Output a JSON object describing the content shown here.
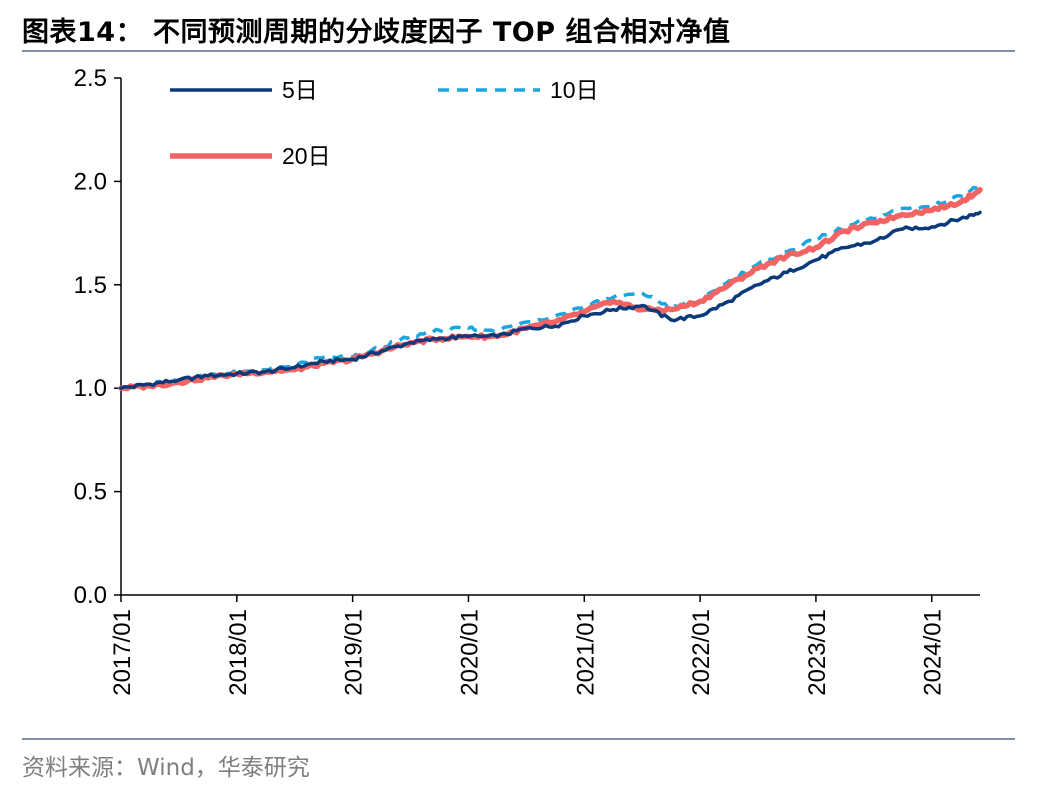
{
  "figure": {
    "title": "图表14：  不同预测周期的分歧度因子 TOP 组合相对净值",
    "source": "资料来源：Wind，华泰研究"
  },
  "colors": {
    "series_5d": "#0b3a7a",
    "series_10d": "#1aa7e0",
    "series_20d": "#f26463",
    "axis": "#000000",
    "rule": "#7f8fa9"
  },
  "chart_data": {
    "type": "line",
    "title": "不同预测周期的分歧度因子 TOP 组合相对净值",
    "xlabel": "",
    "ylabel": "",
    "ylim": [
      0.0,
      2.5
    ],
    "yticks": [
      "0.0",
      "0.5",
      "1.0",
      "1.5",
      "2.0",
      "2.5"
    ],
    "x_range": [
      "2017/01",
      "2024/06"
    ],
    "xticks": [
      "2017/01",
      "2018/01",
      "2019/01",
      "2020/01",
      "2021/01",
      "2022/01",
      "2023/01",
      "2024/01"
    ],
    "grid": false,
    "legend_position": "top-left",
    "x": [
      "2017/01",
      "2017/04",
      "2017/07",
      "2017/10",
      "2018/01",
      "2018/04",
      "2018/07",
      "2018/10",
      "2019/01",
      "2019/04",
      "2019/07",
      "2019/10",
      "2020/01",
      "2020/04",
      "2020/07",
      "2020/10",
      "2021/01",
      "2021/04",
      "2021/07",
      "2021/10",
      "2022/01",
      "2022/04",
      "2022/07",
      "2022/10",
      "2023/01",
      "2023/04",
      "2023/07",
      "2023/10",
      "2024/01",
      "2024/04",
      "2024/06"
    ],
    "series": [
      {
        "name": "5日",
        "style": "solid",
        "values": [
          1.0,
          1.02,
          1.04,
          1.06,
          1.07,
          1.08,
          1.1,
          1.13,
          1.14,
          1.18,
          1.22,
          1.24,
          1.25,
          1.25,
          1.29,
          1.3,
          1.35,
          1.38,
          1.4,
          1.33,
          1.35,
          1.42,
          1.5,
          1.56,
          1.62,
          1.68,
          1.71,
          1.77,
          1.78,
          1.82,
          1.85
        ]
      },
      {
        "name": "10日",
        "style": "dashed",
        "values": [
          1.0,
          1.02,
          1.04,
          1.06,
          1.08,
          1.09,
          1.11,
          1.15,
          1.15,
          1.2,
          1.25,
          1.28,
          1.29,
          1.28,
          1.32,
          1.35,
          1.4,
          1.44,
          1.46,
          1.39,
          1.42,
          1.52,
          1.6,
          1.66,
          1.72,
          1.78,
          1.82,
          1.87,
          1.88,
          1.93,
          1.98
        ]
      },
      {
        "name": "20日",
        "style": "solid-thick",
        "values": [
          1.0,
          1.01,
          1.03,
          1.05,
          1.07,
          1.08,
          1.09,
          1.12,
          1.14,
          1.18,
          1.22,
          1.24,
          1.25,
          1.25,
          1.29,
          1.32,
          1.37,
          1.42,
          1.38,
          1.38,
          1.42,
          1.5,
          1.58,
          1.64,
          1.68,
          1.76,
          1.8,
          1.84,
          1.86,
          1.9,
          1.96
        ]
      }
    ]
  }
}
